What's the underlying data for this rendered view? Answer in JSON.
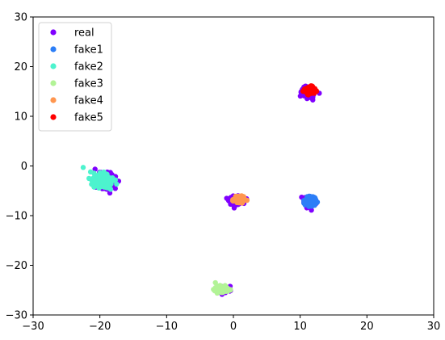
{
  "chart_data": {
    "type": "scatter",
    "title": "",
    "xlabel": "",
    "ylabel": "",
    "xlim": [
      -30,
      30
    ],
    "ylim": [
      -30,
      30
    ],
    "xticks": [
      -30,
      -20,
      -10,
      0,
      10,
      20,
      30
    ],
    "yticks": [
      -30,
      -20,
      -10,
      0,
      10,
      20,
      30
    ],
    "grid": false,
    "legend_position": "top-left",
    "series": [
      {
        "name": "real",
        "color": "#8000ff",
        "clusters": [
          {
            "cx": -19.2,
            "cy": -3.0,
            "spread": [
              1.4,
              1.3
            ],
            "angle": -40,
            "n": 240
          },
          {
            "cx": 11.2,
            "cy": 14.9,
            "spread": [
              0.9,
              0.9
            ],
            "angle": 40,
            "n": 110
          },
          {
            "cx": 11.5,
            "cy": -7.3,
            "spread": [
              0.8,
              0.9
            ],
            "angle": 45,
            "n": 110
          },
          {
            "cx": 0.4,
            "cy": -6.9,
            "spread": [
              0.9,
              0.7
            ],
            "angle": 0,
            "n": 110
          },
          {
            "cx": -1.6,
            "cy": -24.9,
            "spread": [
              1.0,
              0.6
            ],
            "angle": 0,
            "n": 110
          }
        ]
      },
      {
        "name": "fake1",
        "color": "#2c7ef7",
        "clusters": [
          {
            "cx": 11.6,
            "cy": -7.1,
            "spread": [
              0.7,
              0.8
            ],
            "angle": 45,
            "n": 160
          }
        ]
      },
      {
        "name": "fake2",
        "color": "#4df3ce",
        "clusters": [
          {
            "cx": -19.4,
            "cy": -3.0,
            "spread": [
              1.3,
              1.1
            ],
            "angle": -40,
            "n": 260
          }
        ],
        "points": [
          [
            -22.5,
            -0.3
          ]
        ]
      },
      {
        "name": "fake3",
        "color": "#b2f396",
        "clusters": [
          {
            "cx": -1.8,
            "cy": -24.8,
            "spread": [
              0.9,
              0.5
            ],
            "angle": 0,
            "n": 160
          }
        ],
        "points": [
          [
            -2.7,
            -23.5
          ]
        ]
      },
      {
        "name": "fake4",
        "color": "#ff964f",
        "clusters": [
          {
            "cx": 0.9,
            "cy": -6.8,
            "spread": [
              0.7,
              0.5
            ],
            "angle": 0,
            "n": 130
          }
        ]
      },
      {
        "name": "fake5",
        "color": "#ff0000",
        "clusters": [
          {
            "cx": 11.5,
            "cy": 15.3,
            "spread": [
              0.6,
              0.7
            ],
            "angle": 40,
            "n": 110
          }
        ]
      }
    ]
  }
}
